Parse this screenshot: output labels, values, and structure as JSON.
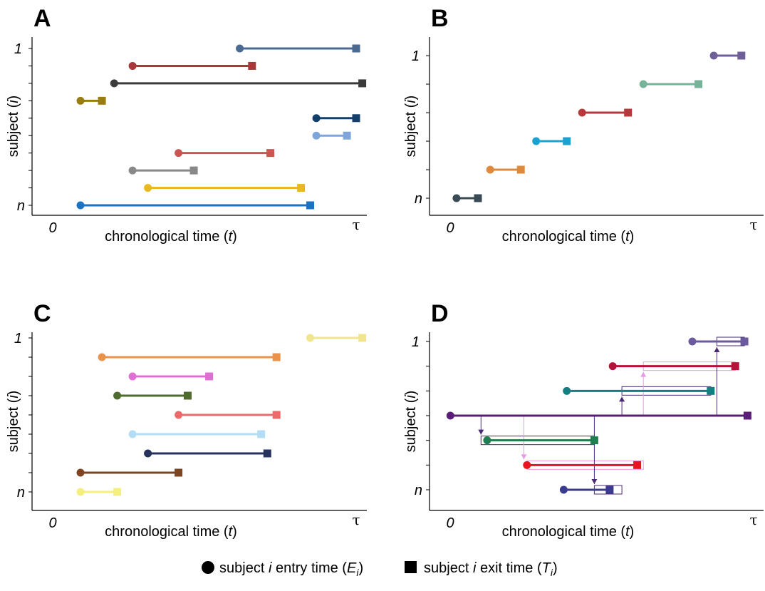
{
  "panels": [
    {
      "label": "A",
      "xlabel_pre": "chronological time (",
      "xlabel_var": "t",
      "xlabel_post": ")",
      "ylabel_pre": "subject (",
      "ylabel_var": "i",
      "ylabel_post": ")",
      "y_top_label": "1",
      "y_bottom_label": "n",
      "x_zero_label": "0",
      "x_end_label": "τ",
      "segments": [
        {
          "entry": 0.62,
          "exit": 1.0,
          "row": 1,
          "color": "#4a6a92"
        },
        {
          "entry": 0.27,
          "exit": 0.66,
          "row": 2,
          "color": "#a8393a"
        },
        {
          "entry": 0.21,
          "exit": 1.02,
          "row": 3,
          "color": "#3a3a3a"
        },
        {
          "entry": 0.1,
          "exit": 0.17,
          "row": 4,
          "color": "#9a7d10"
        },
        {
          "entry": 0.87,
          "exit": 1.0,
          "row": 5,
          "color": "#12406b"
        },
        {
          "entry": 0.87,
          "exit": 0.97,
          "row": 6,
          "color": "#7fa6da"
        },
        {
          "entry": 0.42,
          "exit": 0.72,
          "row": 7,
          "color": "#cc5550"
        },
        {
          "entry": 0.27,
          "exit": 0.47,
          "row": 8,
          "color": "#888888"
        },
        {
          "entry": 0.32,
          "exit": 0.82,
          "row": 9,
          "color": "#eab922"
        },
        {
          "entry": 0.1,
          "exit": 0.85,
          "row": 10,
          "color": "#1a72c2"
        }
      ]
    },
    {
      "label": "B",
      "xlabel_pre": "chronological time (",
      "xlabel_var": "t",
      "xlabel_post": ")",
      "ylabel_pre": "subject (",
      "ylabel_var": "i",
      "ylabel_post": ")",
      "y_top_label": "1",
      "y_bottom_label": "n",
      "x_zero_label": "0",
      "x_end_label": "τ",
      "segments": [
        {
          "entry": 0.87,
          "exit": 0.96,
          "row": 1,
          "color": "#6f5f99"
        },
        {
          "entry": 0.64,
          "exit": 0.82,
          "row": 2,
          "color": "#77b398"
        },
        {
          "entry": 0.44,
          "exit": 0.59,
          "row": 3,
          "color": "#b7383c"
        },
        {
          "entry": 0.29,
          "exit": 0.39,
          "row": 4,
          "color": "#1aa3d1"
        },
        {
          "entry": 0.14,
          "exit": 0.24,
          "row": 5,
          "color": "#de8a3c"
        },
        {
          "entry": 0.03,
          "exit": 0.1,
          "row": 6,
          "color": "#3a4b55"
        }
      ]
    },
    {
      "label": "C",
      "xlabel_pre": "chronological time (",
      "xlabel_var": "t",
      "xlabel_post": ")",
      "ylabel_pre": "subject (",
      "ylabel_var": "i",
      "ylabel_post": ")",
      "y_top_label": "1",
      "y_bottom_label": "n",
      "x_zero_label": "0",
      "x_end_label": "τ",
      "segments": [
        {
          "entry": 0.85,
          "exit": 1.02,
          "row": 1,
          "color": "#f2e58f"
        },
        {
          "entry": 0.17,
          "exit": 0.74,
          "row": 2,
          "color": "#e8924a"
        },
        {
          "entry": 0.27,
          "exit": 0.52,
          "row": 3,
          "color": "#e06fd4"
        },
        {
          "entry": 0.22,
          "exit": 0.45,
          "row": 4,
          "color": "#4f6b2e"
        },
        {
          "entry": 0.42,
          "exit": 0.74,
          "row": 5,
          "color": "#ee6a6a"
        },
        {
          "entry": 0.27,
          "exit": 0.69,
          "row": 6,
          "color": "#b3dcf5"
        },
        {
          "entry": 0.32,
          "exit": 0.71,
          "row": 7,
          "color": "#27335e"
        },
        {
          "entry": 0.1,
          "exit": 0.42,
          "row": 8,
          "color": "#7e4520"
        },
        {
          "entry": 0.1,
          "exit": 0.22,
          "row": 9,
          "color": "#f5f07d"
        }
      ]
    },
    {
      "label": "D",
      "xlabel_pre": "chronological time (",
      "xlabel_var": "t",
      "xlabel_post": ")",
      "ylabel_pre": "subject (",
      "ylabel_var": "i",
      "ylabel_post": ")",
      "y_top_label": "1",
      "y_bottom_label": "n",
      "x_zero_label": "0",
      "x_end_label": "τ",
      "segments": [
        {
          "entry": 0.8,
          "exit": 0.97,
          "row": 1,
          "color": "#6b5aa0"
        },
        {
          "entry": 0.54,
          "exit": 0.94,
          "row": 2,
          "color": "#b5123a"
        },
        {
          "entry": 0.39,
          "exit": 0.86,
          "row": 3,
          "color": "#128080"
        },
        {
          "entry": 0.01,
          "exit": 0.98,
          "row": 4,
          "color": "#5a1d78"
        },
        {
          "entry": 0.13,
          "exit": 0.48,
          "row": 5,
          "color": "#1e8050"
        },
        {
          "entry": 0.26,
          "exit": 0.62,
          "row": 6,
          "color": "#e8141e"
        },
        {
          "entry": 0.38,
          "exit": 0.53,
          "row": 7,
          "color": "#3a3a90"
        }
      ],
      "boxes": [
        {
          "from": 0.88,
          "to": 0.97,
          "row": 1,
          "color": "#4a2a70"
        },
        {
          "from": 0.64,
          "to": 0.94,
          "row": 2,
          "color": "#e79ae8"
        },
        {
          "from": 0.57,
          "to": 0.86,
          "row": 3,
          "color": "#4a2a70"
        },
        {
          "from": 0.11,
          "to": 0.48,
          "row": 5,
          "color": "#4a2a70"
        },
        {
          "from": 0.26,
          "to": 0.64,
          "row": 6,
          "color": "#e79ae8"
        },
        {
          "from": 0.48,
          "to": 0.57,
          "row": 7,
          "color": "#4a2a70"
        }
      ],
      "arrows": [
        {
          "x": 0.88,
          "fromRow": 4,
          "toRow": 1,
          "color": "#4a2a70"
        },
        {
          "x": 0.64,
          "fromRow": 4,
          "toRow": 2,
          "color": "#e79ae8"
        },
        {
          "x": 0.57,
          "fromRow": 4,
          "toRow": 3,
          "color": "#4a2a70"
        },
        {
          "x": 0.11,
          "fromRow": 4,
          "toRow": 5,
          "color": "#4a2a70"
        },
        {
          "x": 0.25,
          "fromRow": 4,
          "toRow": 6,
          "color": "#e79ae8"
        },
        {
          "x": 0.48,
          "fromRow": 4,
          "toRow": 7,
          "color": "#4a2a70"
        }
      ]
    }
  ],
  "legend": {
    "entry_pre": "subject ",
    "entry_var": "i",
    "entry_mid": " entry time (",
    "entry_sym": "E",
    "entry_sub": "i",
    "entry_post": ")",
    "exit_pre": "subject ",
    "exit_var": "i",
    "exit_mid": " exit time (",
    "exit_sym": "T",
    "exit_sub": "i",
    "exit_post": ")"
  }
}
